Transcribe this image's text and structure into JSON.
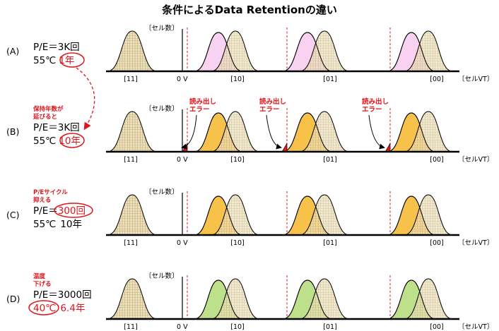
{
  "title": "条件によるData Retentionの違い",
  "axis": {
    "y_label": "〔セル数〕",
    "x_label": "〔セルVT〕",
    "zero_label": "0 V",
    "states": [
      "[11]",
      "[10]",
      "[01]",
      "[00]"
    ]
  },
  "rows": [
    {
      "label": "(A)",
      "note": [],
      "pe_prefix": "P/E＝",
      "pe_value": "3K回",
      "temp": "55℃",
      "time": "1年",
      "shift_color": "#f8d2f0",
      "circle": "time"
    },
    {
      "label": "(B)",
      "note": [
        "保持年数が",
        "延びると"
      ],
      "pe_prefix": "P/E＝",
      "pe_value": "3K回",
      "temp": "55℃",
      "time": "10年",
      "shift_color": "#f7c24a",
      "circle": "time",
      "error_label": [
        "読み出し",
        "エラー"
      ]
    },
    {
      "label": "(C)",
      "note": [
        "P/Eサイクル",
        "抑える"
      ],
      "pe_prefix": "P/E＝",
      "pe_value": "300回",
      "temp": "55℃",
      "time": "10年",
      "shift_color": "#f7c24a",
      "circle": "pe"
    },
    {
      "label": "(D)",
      "note": [
        "温度",
        "下げる"
      ],
      "pe_prefix": "P/E＝",
      "pe_value": "3000回",
      "temp": "40℃",
      "time": "6.4年",
      "shift_color": "#bfe08a",
      "circle": "temp"
    }
  ],
  "colors": {
    "original": "#eee0b8",
    "red": "#e0141a"
  }
}
